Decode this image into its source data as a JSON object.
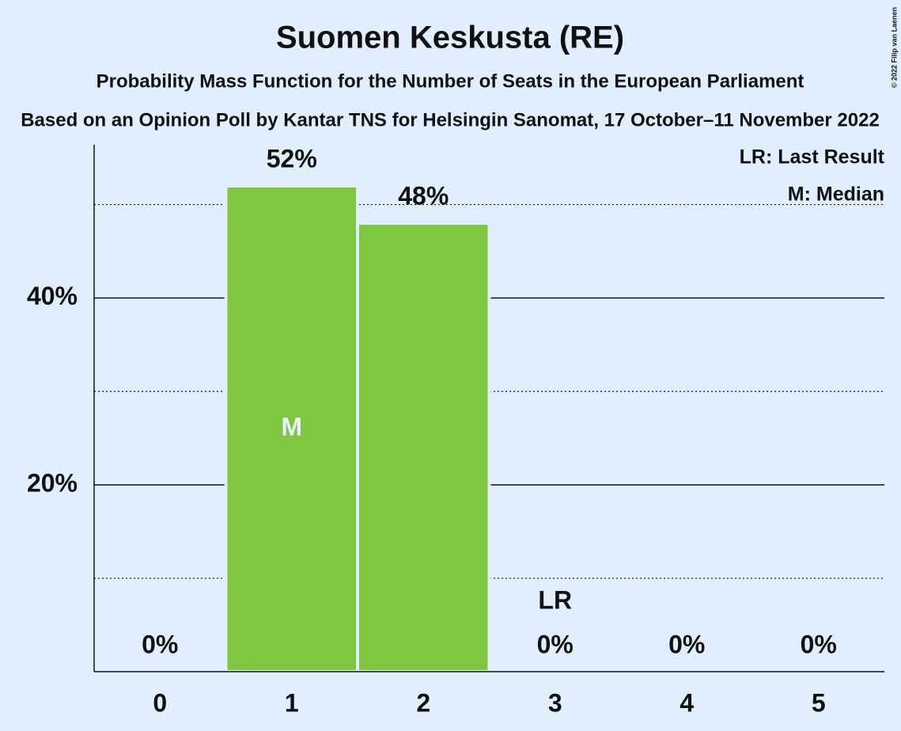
{
  "chart_data": {
    "type": "bar",
    "title": "Suomen Keskusta (RE)",
    "subtitle": "Probability Mass Function for the Number of Seats in the European Parliament",
    "source": "Based on an Opinion Poll by Kantar TNS for Helsingin Sanomat, 17 October–11 November 2022",
    "copyright": "© 2022 Filip van Laenen",
    "categories": [
      "0",
      "1",
      "2",
      "3",
      "4",
      "5"
    ],
    "values": [
      0,
      52,
      48,
      0,
      0,
      0
    ],
    "value_labels": [
      "0%",
      "52%",
      "48%",
      "0%",
      "0%",
      "0%"
    ],
    "color": "#80c740",
    "ylim": [
      0,
      56.4
    ],
    "yticks": [
      {
        "value": 20,
        "label": "20%"
      },
      {
        "value": 40,
        "label": "40%"
      }
    ],
    "minor_gridlines": [
      10,
      30,
      50
    ],
    "grid": true,
    "median": 1,
    "median_label": "M",
    "last_result": 3,
    "last_result_label": "LR",
    "legend": [
      "LR: Last Result",
      "M: Median"
    ]
  }
}
